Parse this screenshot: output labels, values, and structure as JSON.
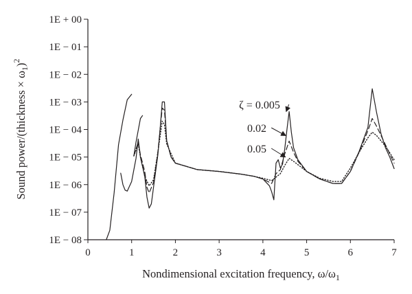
{
  "chart_data": {
    "type": "line",
    "xlabel": "Nondimensional excitation frequency, ω/ω",
    "xlabel_sub": "1",
    "ylabel": "Sound power/(thickness × ω",
    "ylabel_sub": "1",
    "ylabel_close": ")",
    "ylabel_sup": "2",
    "xlim": [
      0,
      7
    ],
    "y_scale": "log",
    "ylim": [
      1e-08,
      1
    ],
    "x_ticks": [
      0,
      1,
      2,
      3,
      4,
      5,
      6,
      7
    ],
    "x_tick_labels": [
      "0",
      "1",
      "2",
      "3",
      "4",
      "5",
      "6",
      "7"
    ],
    "y_ticks": [
      1e-08,
      1e-07,
      1e-06,
      1e-05,
      0.0001,
      0.001,
      0.01,
      0.1,
      1
    ],
    "y_tick_labels": [
      "1E − 08",
      "1E − 07",
      "1E − 06",
      "1E − 05",
      "1E − 04",
      "1E − 03",
      "1E − 02",
      "1E − 01",
      "1E + 00"
    ],
    "grid": false,
    "legend": "none",
    "series": [
      {
        "name": "ζ = 0.005",
        "style": "solid",
        "segments": [
          [
            [
              0.42,
              1e-08
            ],
            [
              0.5,
              2.2e-08
            ],
            [
              0.6,
              5e-07
            ],
            [
              0.7,
              2.8e-05
            ],
            [
              0.8,
              0.00022
            ],
            [
              0.9,
              0.0012
            ],
            [
              1.0,
              0.0019
            ]
          ],
          [
            [
              1.05,
              1.1e-05
            ],
            [
              1.1,
              3.5e-05
            ],
            [
              1.2,
              0.00025
            ],
            [
              1.25,
              0.00032
            ]
          ],
          [
            [
              0.75,
              2.6e-06
            ],
            [
              0.8,
              1e-06
            ],
            [
              0.85,
              6.3e-07
            ],
            [
              0.9,
              5.8e-07
            ],
            [
              1.0,
              1.3e-06
            ],
            [
              1.1,
              9e-06
            ],
            [
              1.15,
              4.5e-05
            ],
            [
              1.2,
              1e-05
            ],
            [
              1.3,
              2e-06
            ],
            [
              1.35,
              3.5e-07
            ],
            [
              1.4,
              1.4e-07
            ],
            [
              1.45,
              2e-07
            ],
            [
              1.5,
              8e-07
            ],
            [
              1.6,
              1.2e-05
            ],
            [
              1.65,
              0.0001
            ],
            [
              1.7,
              0.001
            ],
            [
              1.75,
              0.001
            ],
            [
              1.8,
              4e-05
            ],
            [
              1.9,
              1e-05
            ],
            [
              2.0,
              6e-06
            ],
            [
              2.5,
              3.5e-06
            ],
            [
              3.0,
              3e-06
            ],
            [
              3.5,
              2.4e-06
            ],
            [
              3.8,
              2e-06
            ],
            [
              4.0,
              1.6e-06
            ],
            [
              4.15,
              9e-07
            ],
            [
              4.2,
              5.5e-07
            ],
            [
              4.25,
              2.8e-07
            ],
            [
              4.3,
              6e-06
            ],
            [
              4.35,
              8e-06
            ],
            [
              4.4,
              4e-06
            ],
            [
              4.45,
              5.5e-06
            ],
            [
              4.5,
              2e-05
            ],
            [
              4.55,
              0.0001
            ],
            [
              4.6,
              0.00045
            ],
            [
              4.65,
              8e-05
            ],
            [
              4.7,
              2.2e-05
            ],
            [
              4.8,
              8e-06
            ],
            [
              5.0,
              3e-06
            ],
            [
              5.3,
              1.6e-06
            ],
            [
              5.6,
              1.1e-06
            ],
            [
              5.8,
              1.1e-06
            ],
            [
              6.0,
              3e-06
            ],
            [
              6.2,
              1.6e-05
            ],
            [
              6.4,
              0.00012
            ],
            [
              6.5,
              0.003
            ],
            [
              6.6,
              0.0004
            ],
            [
              6.7,
              7e-05
            ],
            [
              6.8,
              2.2e-05
            ],
            [
              6.9,
              1e-05
            ],
            [
              7.0,
              3.8e-06
            ]
          ]
        ]
      },
      {
        "name": "0.02",
        "style": "dashed",
        "segments": [
          [
            [
              1.05,
              1.1e-05
            ],
            [
              1.15,
              3.5e-05
            ],
            [
              1.2,
              1.2e-05
            ],
            [
              1.3,
              3e-06
            ],
            [
              1.35,
              8e-07
            ],
            [
              1.4,
              5e-07
            ],
            [
              1.5,
              1.2e-06
            ],
            [
              1.6,
              1.5e-05
            ],
            [
              1.65,
              0.0001
            ],
            [
              1.7,
              0.0006
            ],
            [
              1.75,
              0.0005
            ],
            [
              1.8,
              4e-05
            ],
            [
              1.9,
              1e-05
            ],
            [
              2.0,
              6e-06
            ],
            [
              2.5,
              3.5e-06
            ],
            [
              3.0,
              3e-06
            ],
            [
              3.5,
              2.4e-06
            ],
            [
              3.8,
              2e-06
            ],
            [
              4.0,
              1.6e-06
            ],
            [
              4.2,
              1.1e-06
            ],
            [
              4.3,
              2.5e-06
            ],
            [
              4.4,
              3.5e-06
            ],
            [
              4.5,
              1.3e-05
            ],
            [
              4.6,
              3.8e-05
            ],
            [
              4.7,
              1.5e-05
            ],
            [
              4.8,
              7e-06
            ],
            [
              5.0,
              3e-06
            ],
            [
              5.3,
              1.6e-06
            ],
            [
              5.6,
              1.1e-06
            ],
            [
              5.8,
              1.1e-06
            ],
            [
              6.0,
              3e-06
            ],
            [
              6.2,
              1.5e-05
            ],
            [
              6.4,
              9e-05
            ],
            [
              6.5,
              0.00025
            ],
            [
              6.6,
              0.00013
            ],
            [
              6.8,
              2.8e-05
            ],
            [
              7.0,
              6e-06
            ]
          ]
        ]
      },
      {
        "name": "0.05",
        "style": "dotted",
        "segments": [
          [
            [
              1.05,
              1.1e-05
            ],
            [
              1.15,
              3e-05
            ],
            [
              1.2,
              1e-05
            ],
            [
              1.3,
              2e-06
            ],
            [
              1.4,
              9e-07
            ],
            [
              1.5,
              1.5e-06
            ],
            [
              1.6,
              1.5e-05
            ],
            [
              1.7,
              0.0002
            ],
            [
              1.75,
              0.00015
            ],
            [
              1.8,
              3e-05
            ],
            [
              2.0,
              6e-06
            ],
            [
              2.5,
              3.5e-06
            ],
            [
              3.0,
              3e-06
            ],
            [
              3.5,
              2.4e-06
            ],
            [
              3.8,
              2e-06
            ],
            [
              4.0,
              1.7e-06
            ],
            [
              4.2,
              1.4e-06
            ],
            [
              4.4,
              2.5e-06
            ],
            [
              4.5,
              5e-06
            ],
            [
              4.6,
              9e-06
            ],
            [
              4.7,
              7e-06
            ],
            [
              5.0,
              3e-06
            ],
            [
              5.3,
              1.7e-06
            ],
            [
              5.6,
              1.3e-06
            ],
            [
              5.8,
              1.3e-06
            ],
            [
              6.0,
              4e-06
            ],
            [
              6.2,
              1.5e-05
            ],
            [
              6.4,
              5e-05
            ],
            [
              6.5,
              8e-05
            ],
            [
              6.6,
              6e-05
            ],
            [
              6.8,
              2.5e-05
            ],
            [
              7.0,
              8e-06
            ]
          ]
        ]
      }
    ],
    "annotations": [
      {
        "label": "ζ = 0.005",
        "arrow_to": [
          4.58,
          0.00045
        ]
      },
      {
        "label": "0.02",
        "arrow_to": [
          4.57,
          6e-05
        ]
      },
      {
        "label": "0.05",
        "arrow_to": [
          4.56,
          1e-05
        ]
      }
    ]
  }
}
